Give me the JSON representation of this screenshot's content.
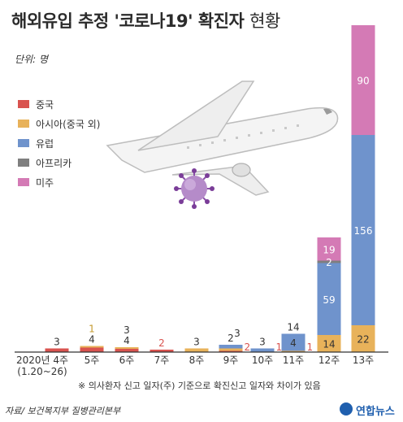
{
  "title": {
    "main": "해외유입 추정 '코로나19' 확진자",
    "suffix": "현황"
  },
  "unit_label": "단위: 명",
  "footnote": "※ 의사환자 신고 일자(주) 기준으로 확진신고 일자와 차이가 있음",
  "source": "자료/ 보건복지부 질병관리본부",
  "logo_text": "연합뉴스",
  "colors": {
    "china": "#d9534f",
    "asia": "#e8b25a",
    "europe": "#6f93cc",
    "africa": "#7f7f7f",
    "americas": "#d47ab5",
    "text_dark": "#333333",
    "text_white": "#ffffff"
  },
  "illustration_icons": [
    "airplane-icon",
    "coronavirus-icon"
  ],
  "chart_data": {
    "type": "bar",
    "stacked": true,
    "categories": [
      "2020년 4주\n(1.20~26)",
      "5주",
      "6주",
      "7주",
      "8주",
      "9주",
      "10주",
      "11주",
      "12주",
      "13주"
    ],
    "series": [
      {
        "name": "중국",
        "color": "#d9534f",
        "values": [
          3,
          4,
          3,
          2,
          0,
          1,
          0,
          0,
          0,
          0
        ]
      },
      {
        "name": "아시아(중국 외)",
        "color": "#e8b25a",
        "values": [
          0,
          1,
          1,
          0,
          3,
          2,
          0,
          1,
          14,
          22
        ]
      },
      {
        "name": "유럽",
        "color": "#6f93cc",
        "values": [
          0,
          0,
          0,
          0,
          0,
          3,
          3,
          14,
          59,
          156
        ]
      },
      {
        "name": "아프리카",
        "color": "#7f7f7f",
        "values": [
          0,
          0,
          0,
          0,
          0,
          0,
          0,
          0,
          2,
          0
        ]
      },
      {
        "name": "미주",
        "color": "#d47ab5",
        "values": [
          0,
          0,
          0,
          0,
          0,
          0,
          0,
          0,
          19,
          90
        ]
      }
    ],
    "data_labels": [
      {
        "category": 0,
        "text": "3",
        "pos": "top",
        "color": "#333333"
      },
      {
        "category": 1,
        "text": "1",
        "pos": "above2",
        "color": "#c49a2e"
      },
      {
        "category": 1,
        "text": "4",
        "pos": "top",
        "color": "#333333"
      },
      {
        "category": 2,
        "text": "3",
        "pos": "above2",
        "color": "#333333"
      },
      {
        "category": 2,
        "text": "4",
        "pos": "top",
        "color": "#333333"
      },
      {
        "category": 3,
        "text": "2",
        "pos": "top",
        "color": "#d9534f"
      },
      {
        "category": 4,
        "text": "3",
        "pos": "top",
        "color": "#333333"
      },
      {
        "category": 5,
        "text": "2",
        "pos": "top",
        "color": "#333333"
      },
      {
        "category": 5,
        "text": "3",
        "pos": "top-right",
        "color": "#333333"
      },
      {
        "category": 5,
        "text": "2",
        "pos": "right",
        "color": "#d9534f"
      },
      {
        "category": 6,
        "text": "3",
        "pos": "top",
        "color": "#333333"
      },
      {
        "category": 6,
        "text": "1",
        "pos": "right",
        "color": "#d9534f"
      },
      {
        "category": 7,
        "text": "14",
        "pos": "top",
        "color": "#333333"
      },
      {
        "category": 7,
        "text": "4",
        "pos": "inside-mid",
        "color": "#333333"
      },
      {
        "category": 7,
        "text": "1",
        "pos": "right",
        "color": "#d9534f"
      },
      {
        "category": 8,
        "text": "14",
        "pos": "inside-series-1",
        "color": "#333333"
      },
      {
        "category": 8,
        "text": "59",
        "pos": "inside-series-2",
        "color": "#ffffff"
      },
      {
        "category": 8,
        "text": "2",
        "pos": "inside-series-3",
        "color": "#ffffff"
      },
      {
        "category": 8,
        "text": "19",
        "pos": "inside-series-4",
        "color": "#ffffff"
      },
      {
        "category": 9,
        "text": "22",
        "pos": "inside-series-1",
        "color": "#333333"
      },
      {
        "category": 9,
        "text": "156",
        "pos": "inside-series-2",
        "color": "#ffffff"
      },
      {
        "category": 9,
        "text": "90",
        "pos": "inside-series-4",
        "color": "#ffffff"
      }
    ],
    "legend": {
      "placement": "left"
    },
    "grid": false
  }
}
